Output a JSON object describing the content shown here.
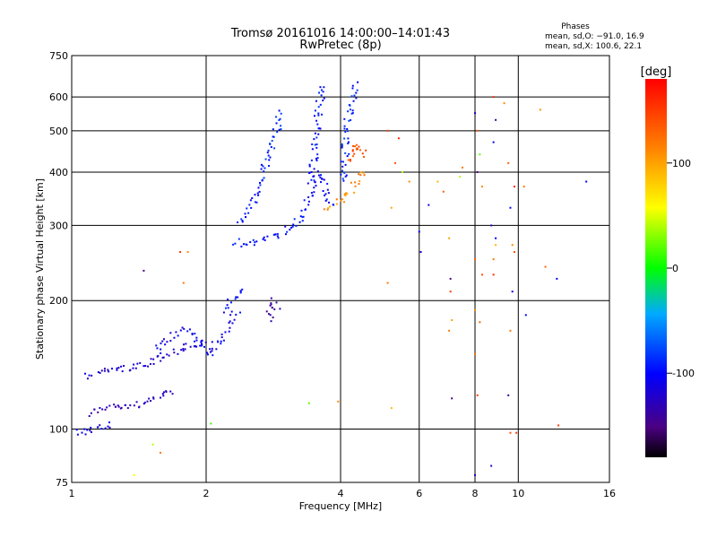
{
  "chart_data": {
    "type": "scatter",
    "title": "Tromsø 20161016 14:00:00–14:01:43",
    "subtitle": "RwPretec (8p)",
    "xlabel": "Frequency [MHz]",
    "ylabel": "Stationary phase Virtual Height [km]",
    "x_scale": "log",
    "y_scale": "log",
    "xlim": [
      1,
      16
    ],
    "ylim": [
      75,
      750
    ],
    "x_ticks": [
      1,
      2,
      4,
      6,
      8,
      10,
      16
    ],
    "y_ticks": [
      75,
      100,
      200,
      300,
      400,
      500,
      600,
      750
    ],
    "grid": true,
    "stats": {
      "heading": "Phases",
      "line_o": "mean, sd,O: −91.0, 16.9",
      "line_x": "mean, sd,X: 100.6, 22.1"
    },
    "colorbar": {
      "label": "[deg]",
      "min": -180,
      "max": 180,
      "ticks": [
        -100,
        0,
        100
      ]
    },
    "traces": [
      {
        "x": [
          1.02,
          1.06,
          1.1,
          1.14,
          1.18,
          1.22
        ],
        "y": [
          99,
          98,
          100,
          101,
          100,
          103
        ],
        "phase": -110
      },
      {
        "x": [
          1.1,
          1.16,
          1.22,
          1.3,
          1.38,
          1.46,
          1.55,
          1.62,
          1.7
        ],
        "y": [
          108,
          111,
          113,
          114,
          113,
          116,
          118,
          120,
          123
        ],
        "phase": -130
      },
      {
        "x": [
          1.08,
          1.16,
          1.24,
          1.34,
          1.44,
          1.54,
          1.66,
          1.78,
          1.92,
          2.05
        ],
        "y": [
          133,
          136,
          138,
          139,
          141,
          145,
          150,
          155,
          158,
          160
        ],
        "phase": -120
      },
      {
        "x": [
          1.55,
          1.65,
          1.75,
          1.85,
          1.95,
          2.05,
          2.15,
          2.25,
          2.35
        ],
        "y": [
          152,
          162,
          170,
          168,
          158,
          150,
          160,
          175,
          190
        ],
        "phase": -105
      },
      {
        "x": [
          2.2,
          2.28,
          2.36,
          2.44
        ],
        "y": [
          190,
          200,
          208,
          215
        ],
        "phase": -95
      },
      {
        "x": [
          2.75,
          2.82,
          2.9
        ],
        "y": [
          180,
          200,
          190
        ],
        "phase": -140
      },
      {
        "x": [
          2.3,
          2.42,
          2.55,
          2.7,
          2.85,
          3.0,
          3.15,
          3.3
        ],
        "y": [
          275,
          272,
          274,
          278,
          283,
          290,
          300,
          320
        ],
        "phase": -100
      },
      {
        "x": [
          2.4,
          2.55,
          2.7,
          2.85,
          2.95
        ],
        "y": [
          300,
          340,
          400,
          480,
          560
        ],
        "phase": -90
      },
      {
        "x": [
          3.45,
          3.5,
          3.56,
          3.62,
          3.68
        ],
        "y": [
          380,
          460,
          540,
          610,
          650
        ],
        "phase": -95
      },
      {
        "x": [
          3.3,
          3.4,
          3.5,
          3.6,
          3.7,
          3.8,
          3.9
        ],
        "y": [
          320,
          350,
          380,
          400,
          360,
          340,
          335
        ],
        "phase": -100
      },
      {
        "x": [
          4.05,
          4.1,
          4.15,
          4.22,
          4.3,
          4.38
        ],
        "y": [
          380,
          450,
          520,
          580,
          620,
          650
        ],
        "phase": -90
      },
      {
        "x": [
          3.75,
          3.9,
          4.05,
          4.2,
          4.35,
          4.5
        ],
        "y": [
          330,
          335,
          345,
          360,
          380,
          410
        ],
        "phase": 110
      },
      {
        "x": [
          4.2,
          4.3,
          4.4,
          4.5
        ],
        "y": [
          420,
          450,
          470,
          430
        ],
        "phase": 140
      }
    ],
    "scatter_points": [
      {
        "x": 1.45,
        "y": 235,
        "phase": -150
      },
      {
        "x": 1.75,
        "y": 260,
        "phase": 150
      },
      {
        "x": 1.82,
        "y": 260,
        "phase": 110
      },
      {
        "x": 1.78,
        "y": 220,
        "phase": 120
      },
      {
        "x": 1.52,
        "y": 92,
        "phase": 40
      },
      {
        "x": 1.38,
        "y": 78,
        "phase": 60
      },
      {
        "x": 2.05,
        "y": 103,
        "phase": 10
      },
      {
        "x": 1.58,
        "y": 88,
        "phase": 120
      },
      {
        "x": 3.4,
        "y": 115,
        "phase": 20
      },
      {
        "x": 3.95,
        "y": 116,
        "phase": 110
      },
      {
        "x": 5.1,
        "y": 220,
        "phase": 120
      },
      {
        "x": 5.2,
        "y": 330,
        "phase": 100
      },
      {
        "x": 5.3,
        "y": 420,
        "phase": 140
      },
      {
        "x": 5.4,
        "y": 480,
        "phase": 160
      },
      {
        "x": 5.5,
        "y": 400,
        "phase": 40
      },
      {
        "x": 5.7,
        "y": 380,
        "phase": 110
      },
      {
        "x": 5.1,
        "y": 500,
        "phase": 150
      },
      {
        "x": 5.2,
        "y": 112,
        "phase": 90
      },
      {
        "x": 6.0,
        "y": 290,
        "phase": -100
      },
      {
        "x": 6.05,
        "y": 260,
        "phase": -120
      },
      {
        "x": 6.3,
        "y": 335,
        "phase": -110
      },
      {
        "x": 6.6,
        "y": 380,
        "phase": 90
      },
      {
        "x": 6.8,
        "y": 360,
        "phase": 130
      },
      {
        "x": 7.0,
        "y": 280,
        "phase": 100
      },
      {
        "x": 7.05,
        "y": 225,
        "phase": -150
      },
      {
        "x": 7.05,
        "y": 210,
        "phase": 150
      },
      {
        "x": 7.1,
        "y": 180,
        "phase": 100
      },
      {
        "x": 7.0,
        "y": 170,
        "phase": 120
      },
      {
        "x": 7.1,
        "y": 118,
        "phase": -150
      },
      {
        "x": 7.4,
        "y": 390,
        "phase": 40
      },
      {
        "x": 7.5,
        "y": 410,
        "phase": 120
      },
      {
        "x": 8.0,
        "y": 550,
        "phase": -130
      },
      {
        "x": 8.1,
        "y": 500,
        "phase": 140
      },
      {
        "x": 8.2,
        "y": 440,
        "phase": 20
      },
      {
        "x": 8.1,
        "y": 400,
        "phase": -150
      },
      {
        "x": 8.3,
        "y": 370,
        "phase": 110
      },
      {
        "x": 8.0,
        "y": 250,
        "phase": 130
      },
      {
        "x": 8.3,
        "y": 230,
        "phase": 140
      },
      {
        "x": 8.0,
        "y": 190,
        "phase": 110
      },
      {
        "x": 8.2,
        "y": 178,
        "phase": 130
      },
      {
        "x": 8.0,
        "y": 150,
        "phase": 120
      },
      {
        "x": 8.1,
        "y": 120,
        "phase": 150
      },
      {
        "x": 8.0,
        "y": 78,
        "phase": -120
      },
      {
        "x": 8.8,
        "y": 600,
        "phase": 160
      },
      {
        "x": 8.9,
        "y": 530,
        "phase": -140
      },
      {
        "x": 8.8,
        "y": 470,
        "phase": -110
      },
      {
        "x": 8.7,
        "y": 300,
        "phase": -130
      },
      {
        "x": 8.9,
        "y": 270,
        "phase": 90
      },
      {
        "x": 8.8,
        "y": 250,
        "phase": 120
      },
      {
        "x": 8.8,
        "y": 230,
        "phase": 160
      },
      {
        "x": 8.9,
        "y": 280,
        "phase": -100
      },
      {
        "x": 8.7,
        "y": 82,
        "phase": -130
      },
      {
        "x": 9.3,
        "y": 580,
        "phase": 110
      },
      {
        "x": 9.5,
        "y": 420,
        "phase": 130
      },
      {
        "x": 9.6,
        "y": 330,
        "phase": -100
      },
      {
        "x": 9.7,
        "y": 270,
        "phase": 110
      },
      {
        "x": 9.8,
        "y": 260,
        "phase": 140
      },
      {
        "x": 9.7,
        "y": 210,
        "phase": -110
      },
      {
        "x": 9.6,
        "y": 170,
        "phase": 120
      },
      {
        "x": 9.5,
        "y": 120,
        "phase": -140
      },
      {
        "x": 9.6,
        "y": 98,
        "phase": 140
      },
      {
        "x": 9.9,
        "y": 98,
        "phase": 150
      },
      {
        "x": 9.8,
        "y": 370,
        "phase": 160
      },
      {
        "x": 10.3,
        "y": 370,
        "phase": 120
      },
      {
        "x": 10.4,
        "y": 185,
        "phase": -100
      },
      {
        "x": 11.2,
        "y": 560,
        "phase": 110
      },
      {
        "x": 11.5,
        "y": 240,
        "phase": 130
      },
      {
        "x": 12.2,
        "y": 225,
        "phase": -110
      },
      {
        "x": 12.3,
        "y": 102,
        "phase": 150
      },
      {
        "x": 14.2,
        "y": 380,
        "phase": -100
      }
    ]
  }
}
